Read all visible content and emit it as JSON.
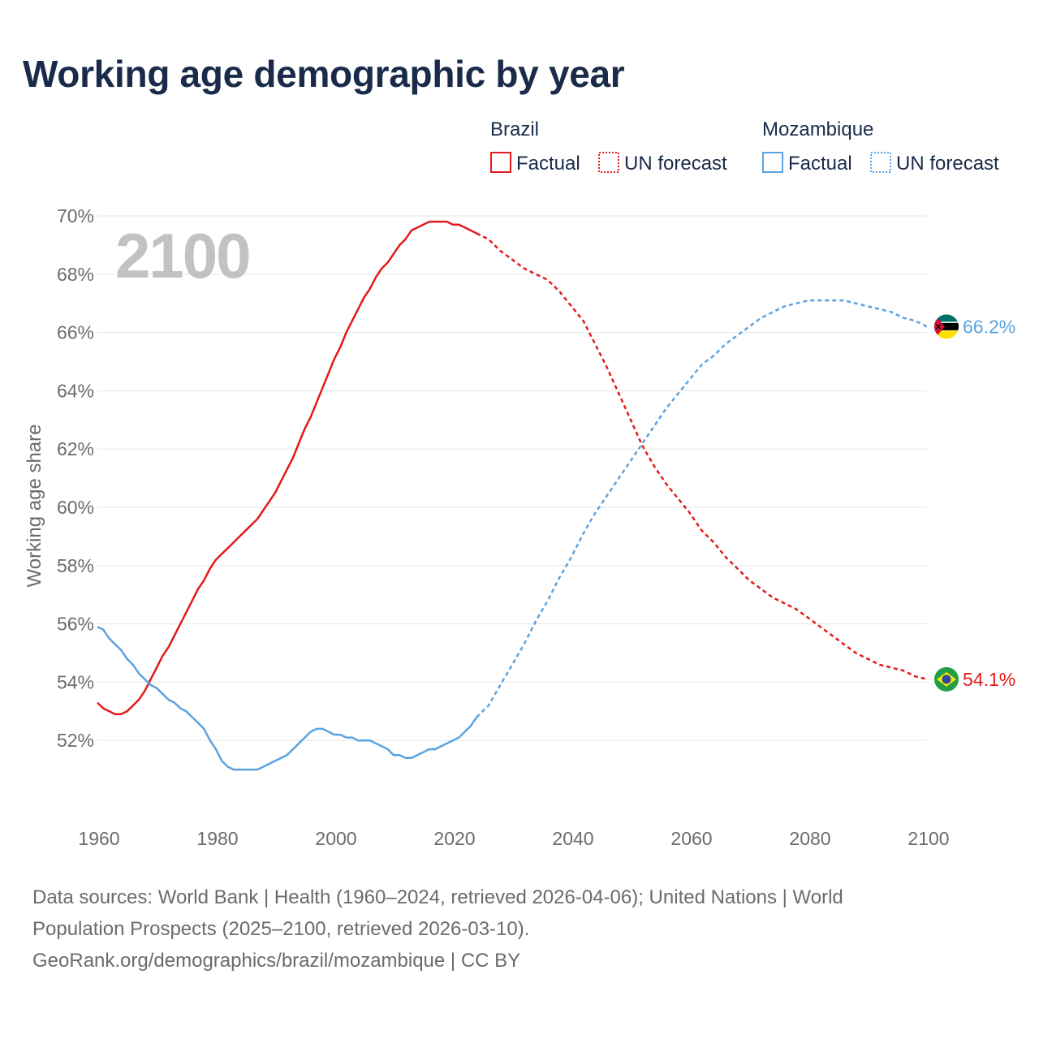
{
  "chart_data": {
    "type": "line",
    "title": "Working age demographic by year",
    "ylabel": "Working age share",
    "xlabel": "",
    "xlim": [
      1960,
      2100
    ],
    "ylim": [
      49.5,
      70.5
    ],
    "x_ticks": [
      1960,
      1980,
      2000,
      2020,
      2040,
      2060,
      2080,
      2100
    ],
    "y_ticks": [
      52,
      54,
      56,
      58,
      60,
      62,
      64,
      66,
      68,
      70
    ],
    "year_label": "2100",
    "legend": {
      "groups": [
        {
          "name": "Brazil",
          "color": "#e31a1c",
          "entries": [
            "Factual",
            "UN forecast"
          ]
        },
        {
          "name": "Mozambique",
          "color": "#5ba3e0",
          "entries": [
            "Factual",
            "UN forecast"
          ]
        }
      ]
    },
    "series": [
      {
        "name": "Brazil",
        "color": "#e31a1c",
        "end_label": "54.1%",
        "factual_x": [
          1960,
          1961,
          1962,
          1963,
          1964,
          1965,
          1966,
          1967,
          1968,
          1969,
          1970,
          1971,
          1972,
          1973,
          1974,
          1975,
          1976,
          1977,
          1978,
          1979,
          1980,
          1981,
          1982,
          1983,
          1984,
          1985,
          1986,
          1987,
          1988,
          1989,
          1990,
          1991,
          1992,
          1993,
          1994,
          1995,
          1996,
          1997,
          1998,
          1999,
          2000,
          2001,
          2002,
          2003,
          2004,
          2005,
          2006,
          2007,
          2008,
          2009,
          2010,
          2011,
          2012,
          2013,
          2014,
          2015,
          2016,
          2017,
          2018,
          2019,
          2020,
          2021,
          2022,
          2023,
          2024
        ],
        "factual_y": [
          53.3,
          53.1,
          53.0,
          52.9,
          52.9,
          53.0,
          53.2,
          53.4,
          53.7,
          54.1,
          54.5,
          54.9,
          55.2,
          55.6,
          56.0,
          56.4,
          56.8,
          57.2,
          57.5,
          57.9,
          58.2,
          58.4,
          58.6,
          58.8,
          59.0,
          59.2,
          59.4,
          59.6,
          59.9,
          60.2,
          60.5,
          60.9,
          61.3,
          61.7,
          62.2,
          62.7,
          63.1,
          63.6,
          64.1,
          64.6,
          65.1,
          65.5,
          66.0,
          66.4,
          66.8,
          67.2,
          67.5,
          67.9,
          68.2,
          68.4,
          68.7,
          69.0,
          69.2,
          69.5,
          69.6,
          69.7,
          69.8,
          69.8,
          69.8,
          69.8,
          69.7,
          69.7,
          69.6,
          69.5,
          69.4
        ],
        "forecast_x": [
          2024,
          2026,
          2028,
          2030,
          2032,
          2034,
          2036,
          2038,
          2040,
          2042,
          2044,
          2046,
          2048,
          2050,
          2052,
          2054,
          2056,
          2058,
          2060,
          2062,
          2064,
          2066,
          2068,
          2070,
          2072,
          2074,
          2076,
          2078,
          2080,
          2082,
          2084,
          2086,
          2088,
          2090,
          2092,
          2094,
          2096,
          2098,
          2100
        ],
        "forecast_y": [
          69.4,
          69.2,
          68.8,
          68.5,
          68.2,
          68.0,
          67.8,
          67.4,
          66.9,
          66.4,
          65.6,
          64.8,
          63.9,
          63.0,
          62.1,
          61.4,
          60.8,
          60.3,
          59.8,
          59.2,
          58.8,
          58.3,
          57.9,
          57.5,
          57.2,
          56.9,
          56.7,
          56.5,
          56.2,
          55.9,
          55.6,
          55.3,
          55.0,
          54.8,
          54.6,
          54.5,
          54.4,
          54.2,
          54.1
        ]
      },
      {
        "name": "Mozambique",
        "color": "#5ba3e0",
        "end_label": "66.2%",
        "factual_x": [
          1960,
          1961,
          1962,
          1963,
          1964,
          1965,
          1966,
          1967,
          1968,
          1969,
          1970,
          1971,
          1972,
          1973,
          1974,
          1975,
          1976,
          1977,
          1978,
          1979,
          1980,
          1981,
          1982,
          1983,
          1984,
          1985,
          1986,
          1987,
          1988,
          1989,
          1990,
          1991,
          1992,
          1993,
          1994,
          1995,
          1996,
          1997,
          1998,
          1999,
          2000,
          2001,
          2002,
          2003,
          2004,
          2005,
          2006,
          2007,
          2008,
          2009,
          2010,
          2011,
          2012,
          2013,
          2014,
          2015,
          2016,
          2017,
          2018,
          2019,
          2020,
          2021,
          2022,
          2023,
          2024
        ],
        "factual_y": [
          55.9,
          55.8,
          55.5,
          55.3,
          55.1,
          54.8,
          54.6,
          54.3,
          54.1,
          53.9,
          53.8,
          53.6,
          53.4,
          53.3,
          53.1,
          53.0,
          52.8,
          52.6,
          52.4,
          52.0,
          51.7,
          51.3,
          51.1,
          51.0,
          51.0,
          51.0,
          51.0,
          51.0,
          51.1,
          51.2,
          51.3,
          51.4,
          51.5,
          51.7,
          51.9,
          52.1,
          52.3,
          52.4,
          52.4,
          52.3,
          52.2,
          52.2,
          52.1,
          52.1,
          52.0,
          52.0,
          52.0,
          51.9,
          51.8,
          51.7,
          51.5,
          51.5,
          51.4,
          51.4,
          51.5,
          51.6,
          51.7,
          51.7,
          51.8,
          51.9,
          52.0,
          52.1,
          52.3,
          52.5,
          52.8
        ],
        "forecast_x": [
          2024,
          2026,
          2028,
          2030,
          2032,
          2034,
          2036,
          2038,
          2040,
          2042,
          2044,
          2046,
          2048,
          2050,
          2052,
          2054,
          2056,
          2058,
          2060,
          2062,
          2064,
          2066,
          2068,
          2070,
          2072,
          2074,
          2076,
          2078,
          2080,
          2082,
          2084,
          2086,
          2088,
          2090,
          2092,
          2094,
          2096,
          2098,
          2100
        ],
        "forecast_y": [
          52.8,
          53.2,
          53.9,
          54.6,
          55.3,
          56.1,
          56.8,
          57.6,
          58.3,
          59.1,
          59.8,
          60.4,
          61.0,
          61.6,
          62.2,
          62.8,
          63.4,
          63.9,
          64.4,
          64.9,
          65.2,
          65.6,
          65.9,
          66.2,
          66.5,
          66.7,
          66.9,
          67.0,
          67.1,
          67.1,
          67.1,
          67.1,
          67.0,
          66.9,
          66.8,
          66.7,
          66.5,
          66.4,
          66.2
        ]
      }
    ]
  },
  "footer": {
    "line1": "Data sources: World Bank | Health (1960–2024, retrieved 2026-04-06); United Nations | World",
    "line2": "Population Prospects (2025–2100, retrieved 2026-03-10).",
    "line3": "GeoRank.org/demographics/brazil/mozambique | CC BY"
  }
}
